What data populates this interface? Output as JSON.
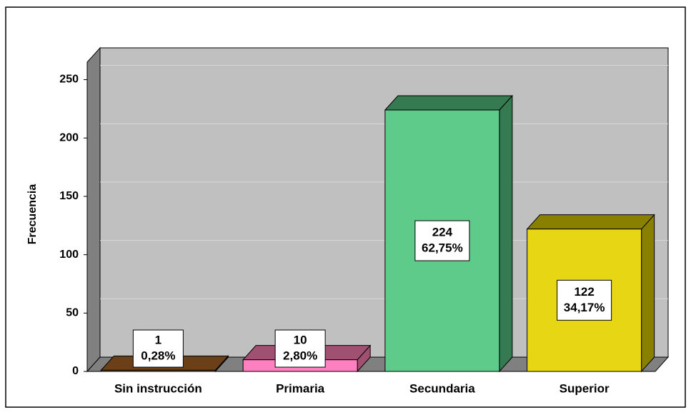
{
  "chart_data": {
    "type": "bar3d",
    "y_label": "Frecuencia",
    "categories": [
      "Sin instrucción",
      "Primaria",
      "Secundaria",
      "Superior"
    ],
    "values": [
      1,
      10,
      224,
      122
    ],
    "percentages": [
      0.28,
      2.8,
      62.75,
      34.17
    ],
    "percentage_labels": [
      "0,28%",
      "2,80%",
      "62,75%",
      "34,17%"
    ],
    "colors": [
      "#9a6328",
      "#ff80c0",
      "#5fcb8b",
      "#e6d614"
    ],
    "side_colors": [
      "#6b4018",
      "#a05070",
      "#357a50",
      "#8a8000"
    ],
    "ylim": [
      0,
      265
    ],
    "yticks": [
      0,
      50,
      100,
      150,
      200,
      250
    ],
    "grid": true
  }
}
